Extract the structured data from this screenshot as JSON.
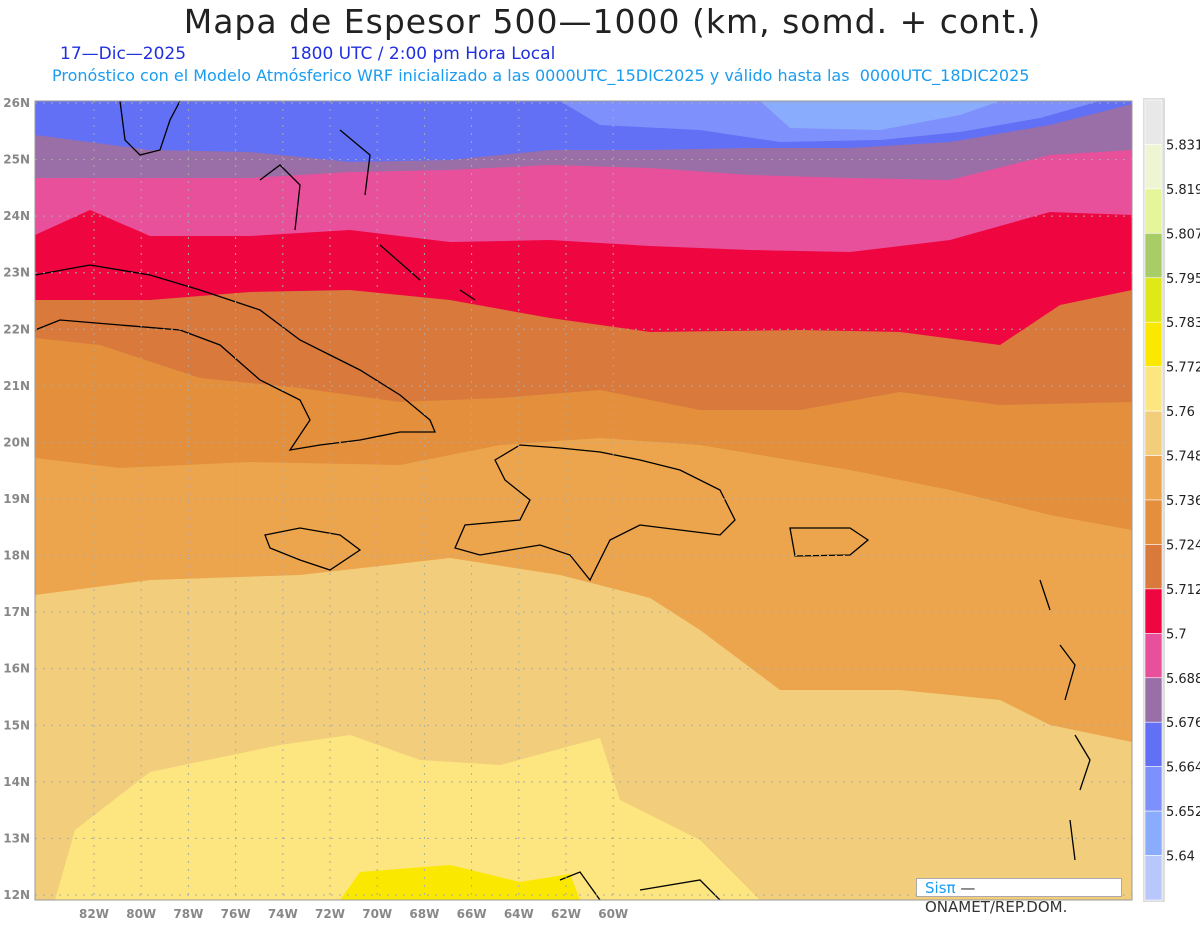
{
  "header": {
    "title": "Mapa de Espesor 500—1000 (km, somd. + cont.)",
    "date": "17—Dic—2025",
    "time": "1800 UTC / 2:00 pm Hora Local",
    "subtitle": "Pronóstico con el Modelo Atmósferico WRF inicializado a las 0000UTC_15DIC2025 y válido hasta las  0000UTC_18DIC2025"
  },
  "axes": {
    "lon_labels": [
      "82W",
      "80W",
      "78W",
      "76W",
      "74W",
      "72W",
      "70W",
      "68W",
      "66W",
      "64W",
      "62W",
      "60W"
    ],
    "lat_labels": [
      "26N",
      "25N",
      "24N",
      "23N",
      "22N",
      "21N",
      "20N",
      "19N",
      "18N",
      "17N",
      "16N",
      "15N",
      "14N",
      "13N",
      "12N"
    ]
  },
  "colorbar": {
    "labels": [
      "5.831",
      "5.819",
      "5.807",
      "5.795",
      "5.783",
      "5.772",
      "5.76",
      "5.748",
      "5.736",
      "5.724",
      "5.712",
      "5.7",
      "5.688",
      "5.676",
      "5.664",
      "5.652",
      "5.64"
    ],
    "colors": [
      "#e8e8e8",
      "#eef5d2",
      "#e5f59a",
      "#a8cc66",
      "#e0e817",
      "#fbe800",
      "#fde67f",
      "#f2ce7c",
      "#eca54d",
      "#e38f3c",
      "#d9793c",
      "#ef0540",
      "#e8509c",
      "#9a6ea6",
      "#6270f5",
      "#7e90fc",
      "#8aacfc",
      "#b8c8fc"
    ]
  },
  "credit": {
    "brand": "Sisπ",
    "org": "—  ONAMET/REP.DOM."
  }
}
